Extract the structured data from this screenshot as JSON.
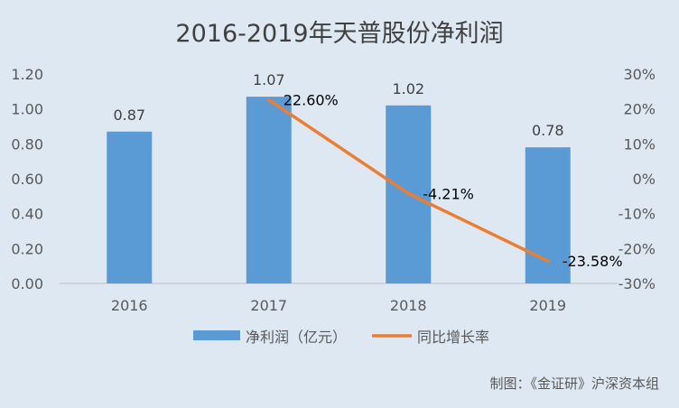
{
  "chart_data": {
    "type": "bar",
    "title": "2016-2019年天普股份净利润",
    "categories": [
      "2016",
      "2017",
      "2018",
      "2019"
    ],
    "series": [
      {
        "name": "净利润（亿元）",
        "type": "bar",
        "axis": "left",
        "values": [
          0.87,
          1.07,
          1.02,
          0.78
        ],
        "data_labels": [
          "0.87",
          "1.07",
          "1.02",
          "0.78"
        ],
        "color": "#5b9bd5"
      },
      {
        "name": "同比增长率",
        "type": "line",
        "axis": "right",
        "values": [
          null,
          22.6,
          -4.21,
          -23.58
        ],
        "data_labels": [
          "",
          "22.60%",
          "-4.21%",
          "-23.58%"
        ],
        "color": "#ed7d31"
      }
    ],
    "y_left": {
      "ylim": [
        0,
        1.2
      ],
      "ticks": [
        0,
        0.2,
        0.4,
        0.6,
        0.8,
        1.0,
        1.2
      ],
      "tick_labels": [
        "0.00",
        "0.20",
        "0.40",
        "0.60",
        "0.80",
        "1.00",
        "1.20"
      ]
    },
    "y_right": {
      "ylim": [
        -30,
        30
      ],
      "ticks": [
        30,
        20,
        10,
        0,
        -10,
        -20,
        -30
      ],
      "tick_labels": [
        "30%",
        "20%",
        "10%",
        "0%",
        "-10%",
        "-20%",
        "-30%"
      ]
    },
    "grid": false,
    "legend_position": "bottom",
    "source_note": "制图：《金证研》沪深资本组"
  },
  "colors": {
    "background": "#dde8f3",
    "bar": "#5b9bd5",
    "line": "#ed7d31",
    "text": "#595959",
    "axis": "#bfbfbf"
  }
}
